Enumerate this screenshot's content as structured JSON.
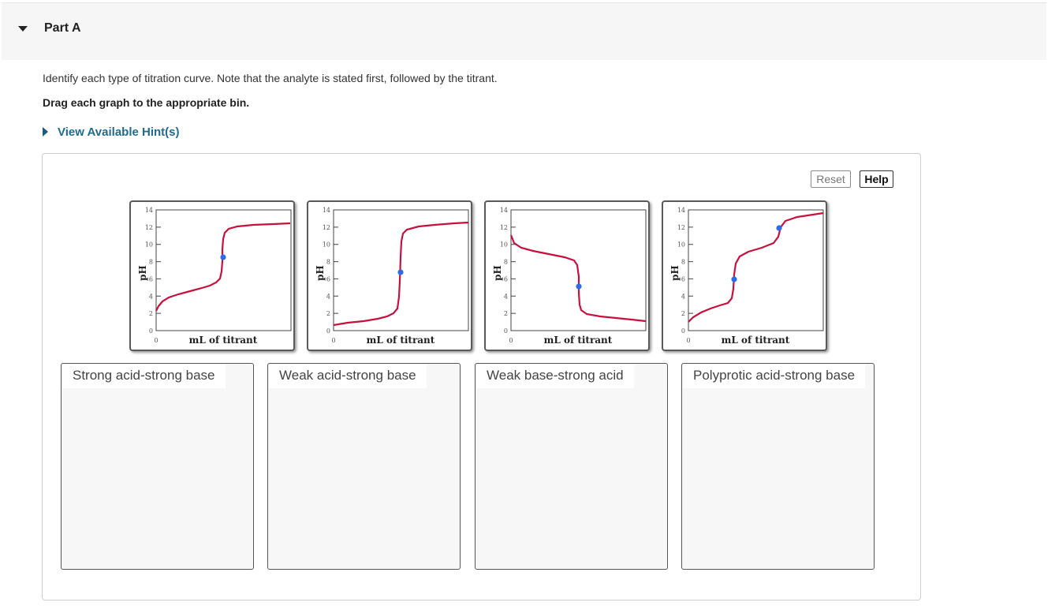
{
  "part": {
    "title": "Part A"
  },
  "instructions": {
    "text": "Identify each type of titration curve. Note that the analyte is stated first, followed by the titrant.",
    "bold": "Drag each graph to the appropriate bin."
  },
  "hint": {
    "label": "View Available Hint(s)"
  },
  "toolbar": {
    "reset_label": "Reset",
    "help_label": "Help"
  },
  "colors": {
    "curve": "#c8103c",
    "point": "#2b6de8",
    "hint": "#1f6c8f"
  },
  "graph_common": {
    "ylabel": "pH",
    "xlabel": "mL of titrant",
    "xtick": "0",
    "yticks": [
      "0",
      "2",
      "4",
      "6",
      "8",
      "10",
      "12",
      "14"
    ]
  },
  "graphs": [
    {
      "id": 1,
      "point_ph": 8.7
    },
    {
      "id": 2,
      "point_ph": 7.0
    },
    {
      "id": 3,
      "point_ph": 5.3
    },
    {
      "id": 4,
      "point_ph": [
        6.0,
        11.9
      ]
    }
  ],
  "bins": [
    {
      "label": "Strong acid-strong base"
    },
    {
      "label": "Weak acid-strong base"
    },
    {
      "label": "Weak base-strong acid"
    },
    {
      "label": "Polyprotic acid-strong base"
    }
  ]
}
